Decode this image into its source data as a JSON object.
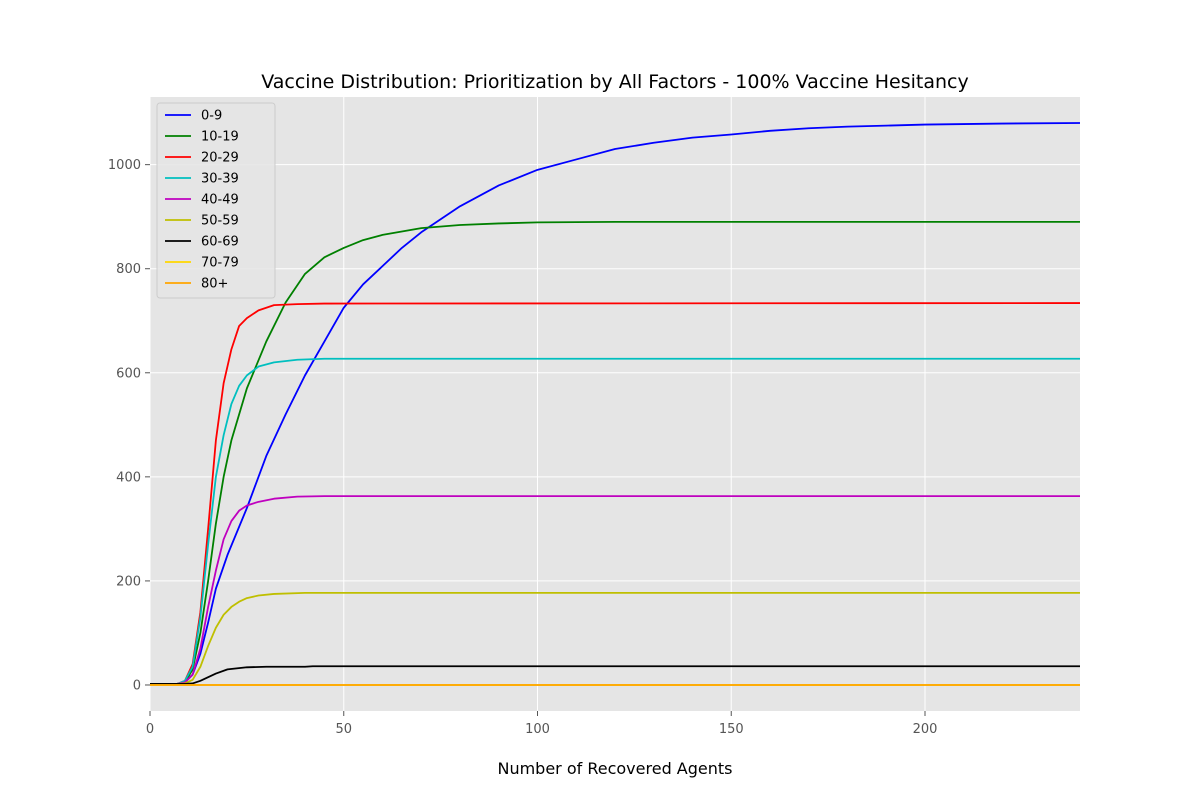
{
  "chart_data": {
    "type": "line",
    "title": "Vaccine Distribution: Prioritization by All Factors - 100% Vaccine Hesitancy",
    "xlabel": "Number of Recovered Agents",
    "ylabel": "",
    "xlim": [
      0,
      240
    ],
    "ylim": [
      -50,
      1130
    ],
    "x_ticks": [
      0,
      50,
      100,
      150,
      200
    ],
    "y_ticks": [
      0,
      200,
      400,
      600,
      800,
      1000
    ],
    "grid": true,
    "legend_position": "upper-left",
    "background_color": "#e5e5e5",
    "grid_color": "#ffffff",
    "series": [
      {
        "name": "0-9",
        "color": "#0000ff",
        "points": [
          [
            0,
            2
          ],
          [
            7,
            2
          ],
          [
            9,
            5
          ],
          [
            11,
            20
          ],
          [
            13,
            60
          ],
          [
            15,
            120
          ],
          [
            17,
            185
          ],
          [
            20,
            250
          ],
          [
            25,
            340
          ],
          [
            30,
            440
          ],
          [
            35,
            520
          ],
          [
            40,
            595
          ],
          [
            45,
            660
          ],
          [
            50,
            725
          ],
          [
            55,
            770
          ],
          [
            60,
            805
          ],
          [
            65,
            840
          ],
          [
            70,
            870
          ],
          [
            75,
            895
          ],
          [
            80,
            920
          ],
          [
            90,
            960
          ],
          [
            100,
            990
          ],
          [
            110,
            1010
          ],
          [
            120,
            1030
          ],
          [
            130,
            1042
          ],
          [
            140,
            1052
          ],
          [
            150,
            1058
          ],
          [
            160,
            1065
          ],
          [
            170,
            1070
          ],
          [
            180,
            1073
          ],
          [
            190,
            1075
          ],
          [
            200,
            1077
          ],
          [
            220,
            1079
          ],
          [
            240,
            1080
          ]
        ]
      },
      {
        "name": "10-19",
        "color": "#008000",
        "points": [
          [
            0,
            2
          ],
          [
            7,
            2
          ],
          [
            9,
            5
          ],
          [
            11,
            30
          ],
          [
            13,
            100
          ],
          [
            15,
            200
          ],
          [
            17,
            310
          ],
          [
            19,
            400
          ],
          [
            21,
            470
          ],
          [
            25,
            570
          ],
          [
            30,
            660
          ],
          [
            35,
            735
          ],
          [
            40,
            790
          ],
          [
            45,
            822
          ],
          [
            50,
            840
          ],
          [
            55,
            855
          ],
          [
            60,
            865
          ],
          [
            70,
            878
          ],
          [
            80,
            884
          ],
          [
            90,
            887
          ],
          [
            100,
            889
          ],
          [
            120,
            890
          ],
          [
            240,
            890
          ]
        ]
      },
      {
        "name": "20-29",
        "color": "#ff0000",
        "points": [
          [
            0,
            2
          ],
          [
            7,
            2
          ],
          [
            9,
            8
          ],
          [
            11,
            40
          ],
          [
            13,
            140
          ],
          [
            15,
            300
          ],
          [
            17,
            470
          ],
          [
            19,
            580
          ],
          [
            21,
            645
          ],
          [
            23,
            690
          ],
          [
            25,
            705
          ],
          [
            28,
            720
          ],
          [
            32,
            730
          ],
          [
            38,
            732
          ],
          [
            45,
            733
          ],
          [
            240,
            734
          ]
        ]
      },
      {
        "name": "30-39",
        "color": "#00bfbf",
        "points": [
          [
            0,
            2
          ],
          [
            7,
            2
          ],
          [
            9,
            8
          ],
          [
            11,
            35
          ],
          [
            13,
            130
          ],
          [
            15,
            270
          ],
          [
            17,
            400
          ],
          [
            19,
            480
          ],
          [
            21,
            540
          ],
          [
            23,
            575
          ],
          [
            25,
            595
          ],
          [
            28,
            612
          ],
          [
            32,
            620
          ],
          [
            38,
            625
          ],
          [
            45,
            627
          ],
          [
            240,
            627
          ]
        ]
      },
      {
        "name": "40-49",
        "color": "#bf00bf",
        "points": [
          [
            0,
            2
          ],
          [
            7,
            2
          ],
          [
            9,
            5
          ],
          [
            11,
            20
          ],
          [
            13,
            70
          ],
          [
            15,
            150
          ],
          [
            17,
            220
          ],
          [
            19,
            280
          ],
          [
            21,
            315
          ],
          [
            23,
            335
          ],
          [
            25,
            345
          ],
          [
            28,
            352
          ],
          [
            32,
            358
          ],
          [
            38,
            362
          ],
          [
            45,
            363
          ],
          [
            240,
            363
          ]
        ]
      },
      {
        "name": "50-59",
        "color": "#bfbf00",
        "points": [
          [
            0,
            2
          ],
          [
            7,
            2
          ],
          [
            9,
            3
          ],
          [
            11,
            10
          ],
          [
            13,
            35
          ],
          [
            15,
            75
          ],
          [
            17,
            110
          ],
          [
            19,
            135
          ],
          [
            21,
            150
          ],
          [
            23,
            160
          ],
          [
            25,
            167
          ],
          [
            28,
            172
          ],
          [
            32,
            175
          ],
          [
            40,
            177
          ],
          [
            240,
            177
          ]
        ]
      },
      {
        "name": "60-69",
        "color": "#000000",
        "points": [
          [
            0,
            2
          ],
          [
            9,
            2
          ],
          [
            11,
            3
          ],
          [
            13,
            8
          ],
          [
            15,
            15
          ],
          [
            17,
            22
          ],
          [
            20,
            30
          ],
          [
            25,
            34
          ],
          [
            30,
            35
          ],
          [
            40,
            35
          ],
          [
            42,
            36
          ],
          [
            240,
            36
          ]
        ]
      },
      {
        "name": "70-79",
        "color": "#ffd700",
        "points": [
          [
            0,
            0
          ],
          [
            240,
            0
          ]
        ]
      },
      {
        "name": "80+",
        "color": "#ffa500",
        "points": [
          [
            0,
            0
          ],
          [
            240,
            0
          ]
        ]
      }
    ]
  }
}
